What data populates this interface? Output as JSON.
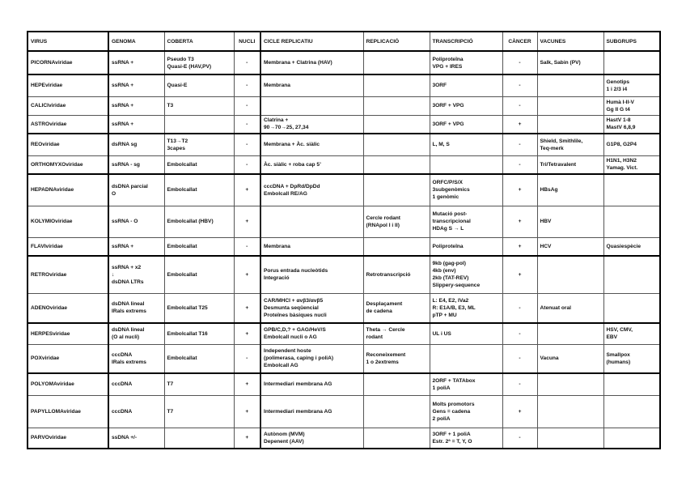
{
  "headers": [
    "VIRUS",
    "GENOMA",
    "COBERTA",
    "NUCLI",
    "CICLE REPLICATIU",
    "REPLICACIÓ",
    "TRANSCRIPCIÓ",
    "CÀNCER",
    "VACUNES",
    "SUBGRUPS"
  ],
  "rows": [
    [
      "PICORNAviridae",
      "ssRNA +",
      "Pseudo T3\nQuasi-E (HAV,PV)",
      "-",
      "Membrana + Clatrina (HAV)",
      "",
      "Poliproteïna\nVPG + IRES",
      "-",
      "Salk, Sabin (PV)",
      ""
    ],
    [
      "HEPEviridae",
      "ssRNA +",
      "Quasi-E",
      "-",
      "Membrana",
      "",
      "3ORF",
      "-",
      "",
      "Genotips\n1 i 2/3 i4"
    ],
    [
      "CALICIviridae",
      "ssRNA +",
      "T3",
      "-",
      "",
      "",
      "3ORF + VPG",
      "-",
      "",
      "Humà I-II-V\nGg II G t4"
    ],
    [
      "ASTROviridae",
      "ssRNA +",
      "",
      "-",
      "Clatrina +\n90→70→25, 27,34",
      "",
      "3ORF + VPG",
      "+",
      "",
      "HastV 1-8\nMastV 6,8,9"
    ],
    [
      "REOviridae",
      "dsRNA sg",
      "T13→T2\n3capes",
      "-",
      "Membrana + Àc. siàlic",
      "",
      "L, M, S",
      "-",
      "Shield, Smithlile,\nTeq-merk",
      "G1P8, G2P4"
    ],
    [
      "ORTHOMYXOviridae",
      "ssRNA - sg",
      "Embolcallat",
      "-",
      "Àc. siàlic + roba cap 5’",
      "",
      "",
      "-",
      "Tri/Tetravalent",
      "H1N1, H3N2\nYamag. Vict."
    ],
    [
      "HEPADNAviridae",
      "dsDNA parcial\nO",
      "Embolcallat",
      "+",
      "cccDNA + DpRd/DpDd\nEmbolcall RE/AG",
      "",
      "ORFC/P/S/X\n3subgenòmics\n1 genòmic",
      "+",
      "HBsAg",
      ""
    ],
    [
      "KOLYMIOviridae",
      "ssRNA - O",
      "Embolcallat (HBV)",
      "+",
      "",
      "Cercle rodant\n(RNApol I i II)",
      "Mutació post-\ntranscripcional\nHDAg S → L",
      "+",
      "HBV",
      ""
    ],
    [
      "FLAVIviridae",
      "ssRNA +",
      "Embolcallat",
      "-",
      "Membrana",
      "",
      "Poliproteïna",
      "+",
      "HCV",
      "Quasiespècie"
    ],
    [
      "RETROviridae",
      "ssRNA + x2\n      ↓\ndsDNA LTRs",
      "Embolcallat",
      "+",
      "Porus entrada nucleòtids\nIntegració",
      "Retrotranscripció",
      "9kb (gag-pol)\n4kb (env)\n2kb (TAT-REV)\nSlippery-sequence",
      "+",
      "",
      ""
    ],
    [
      "ADENOviridae",
      "dsDNA lineal\nIRals extrems",
      "Embolcallat T25",
      "+",
      "CAR/MHCI + αvβ3/αvβ5\nDesmunta seqüencial\nProteïnes bàsiques nucli",
      "Desplaçament\nde cadena",
      "L: E4, E2, IVa2\nR: E1A/B, E3, ML\npTP + MU",
      "-",
      "Atenuat oral",
      ""
    ],
    [
      "HERPESviridae",
      "dsDNA lineal\n(O al nucli)",
      "Embolcallat T16",
      "+",
      "GPB/C,D,? + GAG/HeV/S\nEmbolcall nucli o AG",
      "Theta → Cercle\nrodant",
      "UL i US",
      "-",
      "",
      "HSV, CMV,\nEBV"
    ],
    [
      "POXviridae",
      "cccDNA\nIRals extrems",
      "Embolcallat",
      "-",
      "Independent hoste\n(polimerasa, caping i poliA)\nEmbolcall AG",
      "Reconeixement\n1 o 2extrems",
      "",
      "-",
      "Vacuna",
      "Smallpox\n(humans)"
    ],
    [
      "POLYOMAviridae",
      "cccDNA",
      "T7",
      "+",
      "Intermediari membrana AG",
      "",
      "2ORF + TATAbox\n1 poliA",
      "-",
      "",
      ""
    ],
    [
      "PAPYLLOMAviridae",
      "cccDNA",
      "T7",
      "+",
      "Intermediari membrana AG",
      "",
      "Molts promotors\nGens = cadena\n2 poliA",
      "+",
      "",
      ""
    ],
    [
      "PARVOviridae",
      "ssDNA +/-",
      "",
      "+",
      "Autònom (MVM)\nDepenent (AAV)",
      "",
      "3ORF + 1 poliA\nEstr. 2ª = T, Y, O",
      "-",
      "",
      ""
    ]
  ]
}
